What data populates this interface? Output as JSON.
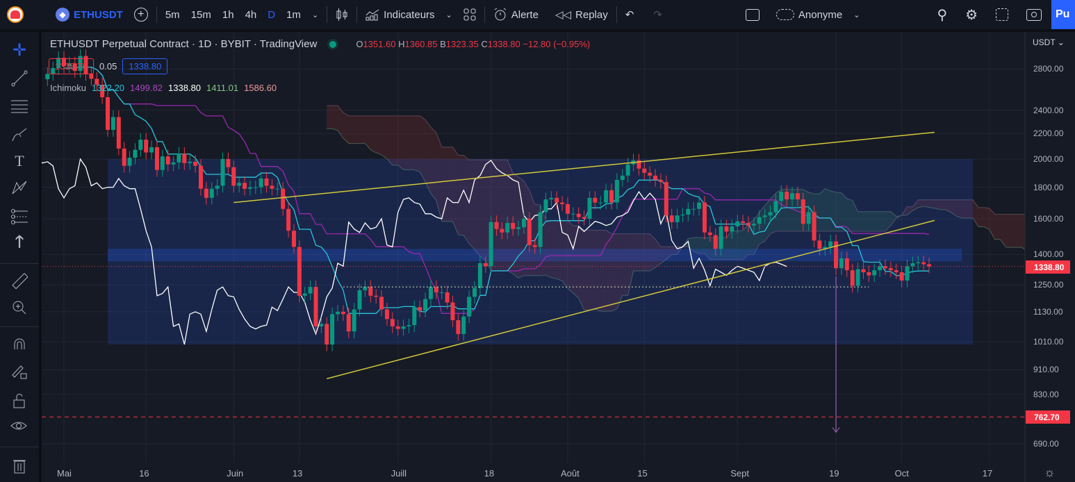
{
  "header": {
    "symbol": "ETHUSDT",
    "timeframes": [
      "5m",
      "15m",
      "1h",
      "4h",
      "D",
      "1m"
    ],
    "active_timeframe": "D",
    "indicators": "Indicateurs",
    "alert": "Alerte",
    "replay": "Replay",
    "layout_name": "Anonyme",
    "publish": "Pu"
  },
  "legend": {
    "title": "ETHUSDT Perpetual Contract · 1D · BYBIT · TradingView",
    "o_label": "O",
    "o": "1351.60",
    "h_label": "H",
    "h": "1360.85",
    "b_label": "B",
    "b": "1323.35",
    "c_label": "C",
    "c": "1338.80",
    "change": "−12.80 (−0.95%)",
    "sell": "1338.75",
    "spread": "0.05",
    "buy": "1338.80",
    "ichimoku": {
      "label": "Ichimoku",
      "values": [
        "1322.20",
        "1499.82",
        "1338.80",
        "1411.01",
        "1586.60"
      ],
      "colors": [
        "#26c6da",
        "#ab47bc",
        "#ffffff",
        "#81c784",
        "#ef9a9a"
      ]
    }
  },
  "price_axis": {
    "currency": "USDT",
    "ticks": [
      "2800.00",
      "2400.00",
      "2200.00",
      "2000.00",
      "1800.00",
      "1600.00",
      "1400.00",
      "1250.00",
      "1130.00",
      "1010.00",
      "910.00",
      "830.00",
      "690.00"
    ],
    "last_price": "1338.80",
    "level_price": "762.70"
  },
  "time_axis": [
    {
      "label": "Mai",
      "date": "05-01"
    },
    {
      "label": "16",
      "date": "05-16"
    },
    {
      "label": "Juin",
      "date": "06-01"
    },
    {
      "label": "13",
      "date": "06-13"
    },
    {
      "label": "Juill",
      "date": "07-01"
    },
    {
      "label": "18",
      "date": "07-18"
    },
    {
      "label": "Août",
      "date": "08-01"
    },
    {
      "label": "15",
      "date": "08-15"
    },
    {
      "label": "Sept",
      "date": "09-01"
    },
    {
      "label": "19",
      "date": "09-19"
    },
    {
      "label": "Oct",
      "date": "10-01"
    },
    {
      "label": "17",
      "date": "10-17"
    }
  ],
  "colors": {
    "up": "#089981",
    "down": "#f23645",
    "tenkan": "#26c6da",
    "kijun": "#9c27b0",
    "chikou": "#ffffff",
    "trendline": "#d4c93a",
    "box": "#2962ff",
    "accent": "#2962ff"
  },
  "chart_data": {
    "type": "candlestick",
    "scale": "log",
    "start_date": "04-28",
    "closes": [
      2750,
      2810,
      2920,
      2830,
      2860,
      2780,
      2940,
      2750,
      2700,
      2640,
      2520,
      2230,
      2340,
      2080,
      1950,
      2010,
      2070,
      2150,
      2050,
      2090,
      1920,
      2020,
      1960,
      1975,
      2040,
      1970,
      1980,
      1950,
      1790,
      1730,
      1790,
      1810,
      2000,
      1940,
      1810,
      1830,
      1790,
      1800,
      1800,
      1860,
      1810,
      1790,
      1790,
      1660,
      1530,
      1440,
      1200,
      1210,
      1240,
      1070,
      1080,
      1000,
      1120,
      1130,
      1120,
      1050,
      1140,
      1225,
      1240,
      1200,
      1195,
      1140,
      1100,
      1070,
      1060,
      1070,
      1075,
      1150,
      1135,
      1185,
      1240,
      1215,
      1215,
      1170,
      1095,
      1040,
      1110,
      1195,
      1235,
      1355,
      1340,
      1580,
      1540,
      1520,
      1575,
      1540,
      1550,
      1600,
      1450,
      1440,
      1640,
      1720,
      1730,
      1700,
      1690,
      1630,
      1630,
      1610,
      1600,
      1730,
      1700,
      1700,
      1780,
      1700,
      1850,
      1880,
      1960,
      1990,
      1930,
      1900,
      1880,
      1850,
      1835,
      1620,
      1580,
      1620,
      1625,
      1660,
      1660,
      1700,
      1520,
      1505,
      1430,
      1555,
      1525,
      1555,
      1585,
      1575,
      1560,
      1570,
      1610,
      1620,
      1640,
      1710,
      1770,
      1720,
      1760,
      1720,
      1570,
      1640,
      1475,
      1430,
      1440,
      1470,
      1330,
      1380,
      1320,
      1245,
      1325,
      1310,
      1295,
      1320,
      1340,
      1330,
      1320,
      1310,
      1270,
      1340,
      1355,
      1360,
      1350,
      1338.8
    ],
    "indicator": "Ichimoku",
    "drawings": {
      "box": {
        "from": "05-09",
        "to": "10-14",
        "top": 2000,
        "bottom": 1000
      },
      "band": {
        "from": "05-09",
        "to": "10-12",
        "top": 1430,
        "bottom": 1365
      },
      "upper_trend": {
        "from": [
          "06-01",
          1700
        ],
        "to": [
          "10-07",
          2210
        ]
      },
      "lower_trend": {
        "from": [
          "06-18",
          880
        ],
        "to": [
          "10-07",
          1590
        ]
      },
      "support_dotted": {
        "from": "06-21",
        "to": "09-25",
        "price": 1240
      },
      "arrow": {
        "date": "09-19",
        "from": 1290,
        "to": 720
      },
      "level_line": 762.7
    }
  }
}
